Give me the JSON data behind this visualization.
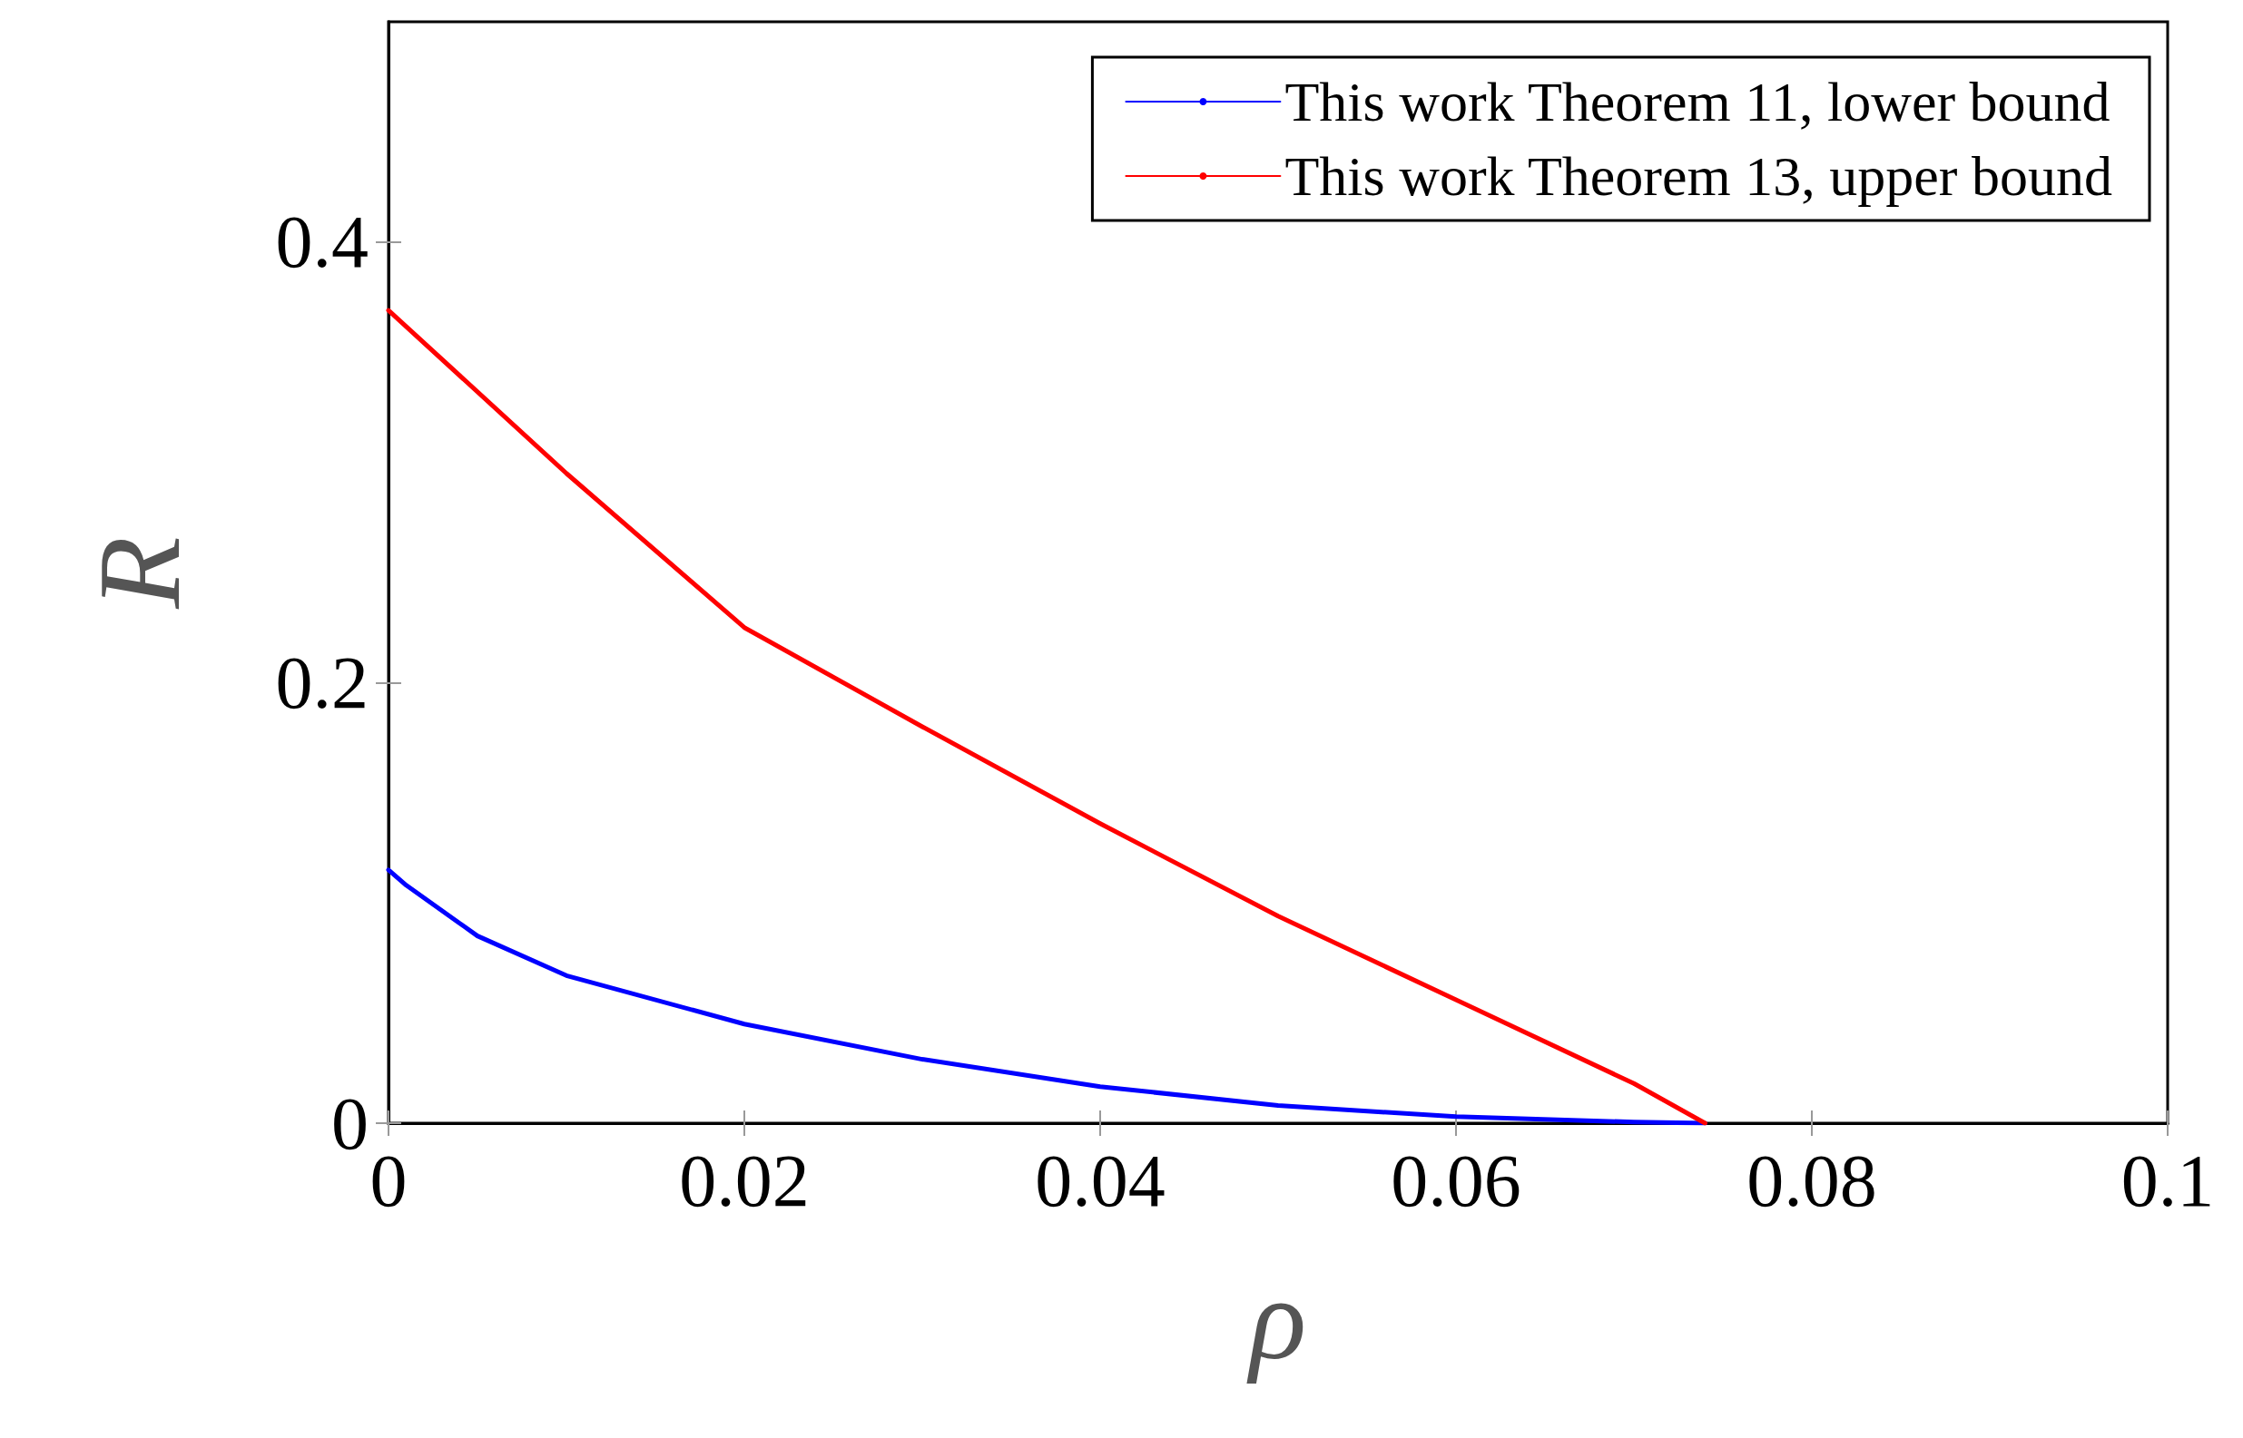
{
  "chart_data": {
    "type": "line",
    "xlabel": "ρ",
    "ylabel": "R",
    "xlim": [
      0,
      0.1
    ],
    "xticks": [
      0,
      0.02,
      0.04,
      0.06,
      0.08,
      0.1
    ],
    "ylim": [
      0,
      0.5
    ],
    "yticks": [
      0,
      0.2,
      0.4
    ],
    "legend": "top right",
    "grid": false,
    "marker": "none",
    "line_style": "solid",
    "series": [
      {
        "name": "This work Theorem 11, lower bound",
        "color": "#0000ff",
        "x": [
          0,
          0.001,
          0.005,
          0.01,
          0.02,
          0.03,
          0.04,
          0.05,
          0.06,
          0.07,
          0.074
        ],
        "values": [
          0.115,
          0.108,
          0.085,
          0.067,
          0.045,
          0.029,
          0.0166,
          0.008,
          0.003,
          0.0005,
          0
        ]
      },
      {
        "name": "This work Theorem 13, upper bound",
        "color": "#ff0000",
        "x": [
          0,
          0.01,
          0.02,
          0.03,
          0.04,
          0.05,
          0.06,
          0.07,
          0.074
        ],
        "values": [
          0.369,
          0.295,
          0.225,
          0.18,
          0.136,
          0.094,
          0.056,
          0.018,
          0
        ]
      }
    ]
  }
}
